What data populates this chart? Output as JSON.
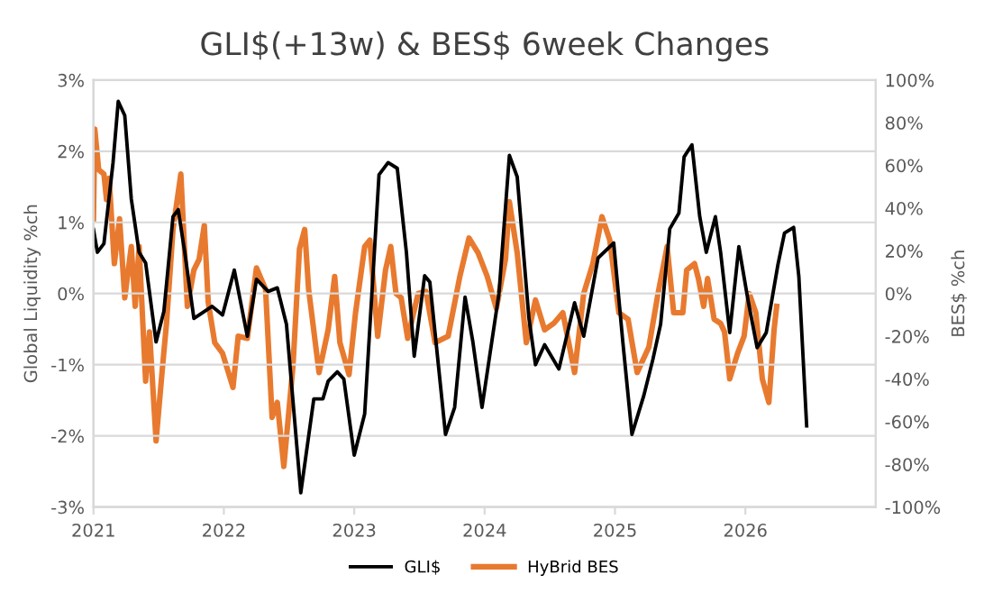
{
  "chart_data": {
    "type": "line",
    "title": "GLI$(+13w) & BES$ 6week Changes",
    "ylabel": "Global Liquidity %ch",
    "y2label": "BES$ %ch",
    "xlim": [
      2021,
      2027
    ],
    "xticks": [
      2021,
      2022,
      2023,
      2024,
      2025,
      2026
    ],
    "ylim": [
      -3,
      3
    ],
    "yticks": [
      {
        "value": -3,
        "label": "-3%"
      },
      {
        "value": -2,
        "label": "-2%"
      },
      {
        "value": -1,
        "label": "-1%"
      },
      {
        "value": 0,
        "label": "0%"
      },
      {
        "value": 1,
        "label": "1%"
      },
      {
        "value": 2,
        "label": "2%"
      },
      {
        "value": 3,
        "label": "3%"
      }
    ],
    "y2lim": [
      -100,
      100
    ],
    "y2ticks": [
      {
        "value": -100,
        "label": "-100%"
      },
      {
        "value": -80,
        "label": "-80%"
      },
      {
        "value": -60,
        "label": "-60%"
      },
      {
        "value": -40,
        "label": "-40%"
      },
      {
        "value": -20,
        "label": "-20%"
      },
      {
        "value": 0,
        "label": "0%"
      },
      {
        "value": 20,
        "label": "20%"
      },
      {
        "value": 40,
        "label": "40%"
      },
      {
        "value": 60,
        "label": "60%"
      },
      {
        "value": 80,
        "label": "80%"
      },
      {
        "value": 100,
        "label": "100%"
      }
    ],
    "grid": "y",
    "legend": "bottom",
    "marker": "none",
    "line_style": "solid",
    "series": [
      {
        "name": "GLI$",
        "color": "#000000",
        "x": [
          2021.0,
          2021.03,
          2021.08,
          2021.15,
          2021.19,
          2021.24,
          2021.29,
          2021.35,
          2021.4,
          2021.48,
          2021.54,
          2021.61,
          2021.65,
          2021.7,
          2021.77,
          2021.91,
          2021.99,
          2022.08,
          2022.18,
          2022.25,
          2022.34,
          2022.41,
          2022.48,
          2022.59,
          2022.69,
          2022.76,
          2022.8,
          2022.87,
          2022.92,
          2023.0,
          2023.08,
          2023.19,
          2023.26,
          2023.33,
          2023.4,
          2023.46,
          2023.54,
          2023.58,
          2023.7,
          2023.77,
          2023.85,
          2023.91,
          2023.98,
          2024.11,
          2024.19,
          2024.25,
          2024.34,
          2024.39,
          2024.46,
          2024.57,
          2024.69,
          2024.76,
          2024.87,
          2024.99,
          2025.06,
          2025.13,
          2025.22,
          2025.29,
          2025.35,
          2025.42,
          2025.49,
          2025.53,
          2025.59,
          2025.65,
          2025.7,
          2025.77,
          2025.81,
          2025.88,
          2025.95,
          2026.02,
          2026.09,
          2026.16,
          2026.25,
          2026.3,
          2026.37,
          2026.41,
          2026.47
        ],
        "values": [
          0.9,
          0.58,
          0.7,
          1.84,
          2.7,
          2.5,
          1.33,
          0.58,
          0.43,
          -0.68,
          -0.25,
          1.08,
          1.18,
          0.58,
          -0.35,
          -0.18,
          -0.3,
          0.33,
          -0.6,
          0.2,
          0.03,
          0.08,
          -0.43,
          -2.8,
          -1.48,
          -1.48,
          -1.23,
          -1.1,
          -1.2,
          -2.27,
          -1.69,
          1.67,
          1.84,
          1.76,
          0.58,
          -0.88,
          0.25,
          0.16,
          -1.98,
          -1.6,
          -0.05,
          -0.68,
          -1.6,
          0.0,
          1.94,
          1.64,
          -0.35,
          -1.0,
          -0.72,
          -1.06,
          -0.13,
          -0.6,
          0.5,
          0.71,
          -0.68,
          -1.98,
          -1.44,
          -0.93,
          -0.43,
          0.91,
          1.13,
          1.92,
          2.09,
          1.08,
          0.58,
          1.08,
          0.58,
          -0.55,
          0.66,
          -0.09,
          -0.76,
          -0.55,
          0.41,
          0.85,
          0.93,
          0.24,
          -1.86
        ]
      },
      {
        "name": "HyBrid BES",
        "color": "#e87a2f",
        "axis": "y2",
        "x": [
          2021.0,
          2021.01,
          2021.04,
          2021.08,
          2021.1,
          2021.12,
          2021.16,
          2021.2,
          2021.24,
          2021.29,
          2021.32,
          2021.35,
          2021.4,
          2021.43,
          2021.48,
          2021.53,
          2021.56,
          2021.61,
          2021.67,
          2021.72,
          2021.77,
          2021.81,
          2021.85,
          2021.88,
          2021.93,
          2021.99,
          2022.07,
          2022.11,
          2022.18,
          2022.25,
          2022.32,
          2022.37,
          2022.41,
          2022.46,
          2022.53,
          2022.58,
          2022.62,
          2022.65,
          2022.73,
          2022.8,
          2022.85,
          2022.89,
          2022.96,
          2023.01,
          2023.08,
          2023.12,
          2023.18,
          2023.24,
          2023.28,
          2023.32,
          2023.36,
          2023.41,
          2023.49,
          2023.55,
          2023.62,
          2023.72,
          2023.81,
          2023.88,
          2023.95,
          2024.02,
          2024.09,
          2024.16,
          2024.19,
          2024.25,
          2024.32,
          2024.39,
          2024.46,
          2024.53,
          2024.6,
          2024.69,
          2024.76,
          2024.83,
          2024.9,
          2024.96,
          2025.03,
          2025.1,
          2025.17,
          2025.26,
          2025.33,
          2025.4,
          2025.45,
          2025.52,
          2025.55,
          2025.61,
          2025.64,
          2025.68,
          2025.71,
          2025.76,
          2025.81,
          2025.84,
          2025.88,
          2025.94,
          2025.99,
          2026.03,
          2026.08,
          2026.13,
          2026.18,
          2026.22,
          2026.24
        ],
        "values": [
          35,
          77,
          58,
          56,
          44,
          54,
          14,
          35,
          -2,
          22,
          -6,
          22,
          -41,
          -18,
          -69,
          -34,
          -14,
          30,
          56,
          -6,
          11,
          16,
          32,
          -4,
          -23,
          -28,
          -44,
          -20,
          -21,
          12,
          2,
          -58,
          -51,
          -81,
          -34,
          21,
          30,
          2,
          -37,
          -17,
          8,
          -23,
          -38,
          -9,
          22,
          25,
          -20,
          11,
          22,
          0,
          -2,
          -21,
          0,
          1,
          -23,
          -20,
          8,
          26,
          19,
          8,
          -7,
          16,
          43,
          19,
          -23,
          -3,
          -17,
          -14,
          -9,
          -37,
          0,
          14,
          36,
          25,
          -9,
          -12,
          -37,
          -25,
          0,
          22,
          -9,
          -9,
          11,
          14,
          7,
          -6,
          7,
          -12,
          -14,
          -18,
          -40,
          -28,
          -20,
          0,
          -9,
          -40,
          -51,
          -17,
          -6
        ]
      }
    ]
  }
}
